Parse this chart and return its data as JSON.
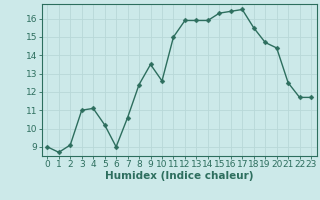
{
  "x": [
    0,
    1,
    2,
    3,
    4,
    5,
    6,
    7,
    8,
    9,
    10,
    11,
    12,
    13,
    14,
    15,
    16,
    17,
    18,
    19,
    20,
    21,
    22,
    23
  ],
  "y": [
    9.0,
    8.7,
    9.1,
    11.0,
    11.1,
    10.2,
    9.0,
    10.6,
    12.4,
    13.5,
    12.6,
    15.0,
    15.9,
    15.9,
    15.9,
    16.3,
    16.4,
    16.5,
    15.5,
    14.7,
    14.4,
    12.5,
    11.7,
    11.7
  ],
  "line_color": "#2d6e5e",
  "marker": "D",
  "marker_size": 2.5,
  "background_color": "#cce9e9",
  "grid_color": "#b8d8d8",
  "xlabel": "Humidex (Indice chaleur)",
  "xlim": [
    -0.5,
    23.5
  ],
  "ylim": [
    8.5,
    16.8
  ],
  "yticks": [
    9,
    10,
    11,
    12,
    13,
    14,
    15,
    16
  ],
  "xticks": [
    0,
    1,
    2,
    3,
    4,
    5,
    6,
    7,
    8,
    9,
    10,
    11,
    12,
    13,
    14,
    15,
    16,
    17,
    18,
    19,
    20,
    21,
    22,
    23
  ],
  "tick_label_fontsize": 6.5,
  "xlabel_fontsize": 7.5,
  "linewidth": 1.0
}
